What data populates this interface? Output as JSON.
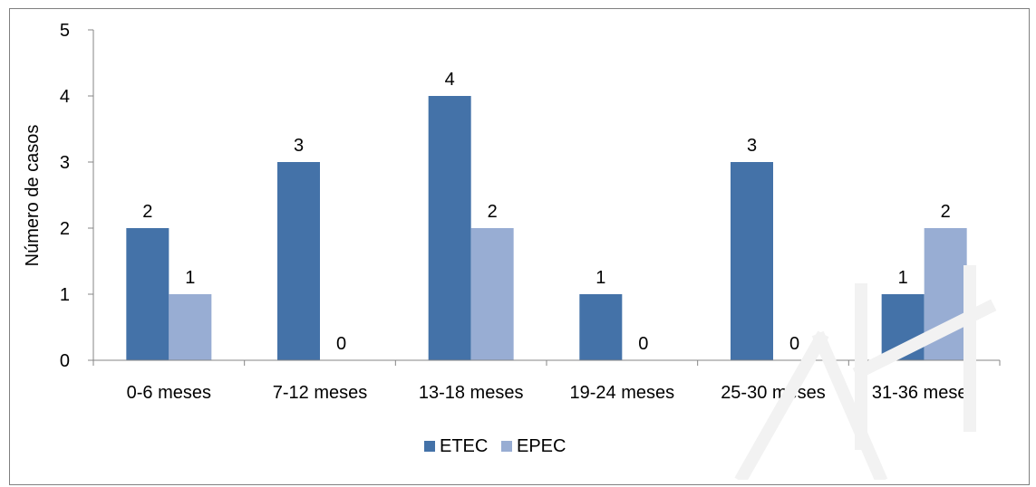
{
  "chart_data": {
    "type": "bar",
    "categories": [
      "0-6 meses",
      "7-12 meses",
      "13-18 meses",
      "19-24 meses",
      "25-30 meses",
      "31-36 meses"
    ],
    "series": [
      {
        "name": "ETEC",
        "values": [
          2,
          3,
          4,
          1,
          3,
          1
        ],
        "color": "#4472A8"
      },
      {
        "name": "EPEC",
        "values": [
          1,
          0,
          2,
          0,
          0,
          2
        ],
        "color": "#98ADD3"
      }
    ],
    "ylabel": "Número de casos",
    "xlabel": "",
    "title": "",
    "ylim": [
      0,
      5
    ],
    "yticks": [
      0,
      1,
      2,
      3,
      4,
      5
    ],
    "data_labels": true,
    "grid": false,
    "legend_position": "bottom"
  }
}
